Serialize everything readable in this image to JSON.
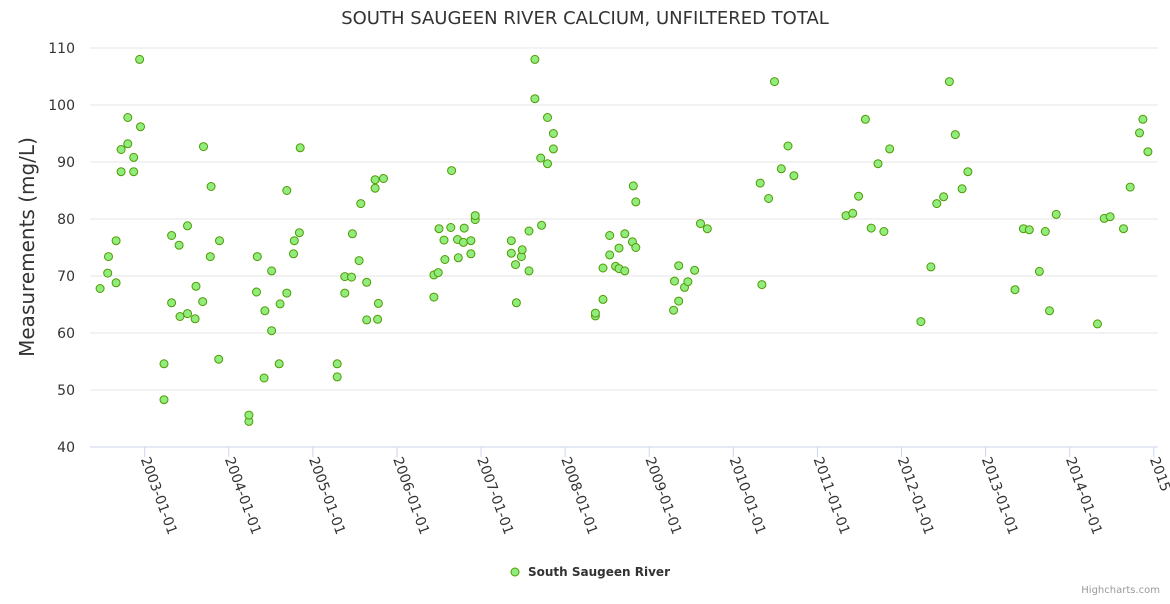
{
  "chart_data": {
    "type": "scatter",
    "title": "SOUTH SAUGEEN RIVER CALCIUM, UNFILTERED TOTAL",
    "xlabel": "",
    "ylabel": "Measurements (mg/L)",
    "ylim": [
      40,
      110
    ],
    "yticks": [
      40,
      50,
      60,
      70,
      80,
      90,
      100,
      110
    ],
    "xlim": [
      2002.35,
      2015.05
    ],
    "xticks": [
      {
        "value": 2003.0,
        "label": "2003-01-01"
      },
      {
        "value": 2004.0,
        "label": "2004-01-01"
      },
      {
        "value": 2005.0,
        "label": "2005-01-01"
      },
      {
        "value": 2006.0,
        "label": "2006-01-01"
      },
      {
        "value": 2007.0,
        "label": "2007-01-01"
      },
      {
        "value": 2008.0,
        "label": "2008-01-01"
      },
      {
        "value": 2009.0,
        "label": "2009-01-01"
      },
      {
        "value": 2010.0,
        "label": "2010-01-01"
      },
      {
        "value": 2011.0,
        "label": "2011-01-01"
      },
      {
        "value": 2012.0,
        "label": "2012-01-01"
      },
      {
        "value": 2013.0,
        "label": "2013-01-01"
      },
      {
        "value": 2014.0,
        "label": "2014-01-01"
      },
      {
        "value": 2015.0,
        "label": "2015"
      }
    ],
    "grid": true,
    "legend_position": "bottom-center",
    "color": "#90ed7d",
    "stroke_color": "#4f9a00",
    "series": [
      {
        "name": "South Saugeen River",
        "points": [
          [
            2002.47,
            67.8
          ],
          [
            2002.56,
            70.5
          ],
          [
            2002.57,
            73.4
          ],
          [
            2002.66,
            68.8
          ],
          [
            2002.66,
            76.2
          ],
          [
            2002.72,
            88.3
          ],
          [
            2002.72,
            92.2
          ],
          [
            2002.8,
            93.2
          ],
          [
            2002.8,
            97.8
          ],
          [
            2002.87,
            88.3
          ],
          [
            2002.87,
            90.8
          ],
          [
            2002.94,
            108.0
          ],
          [
            2002.95,
            96.2
          ],
          [
            2003.23,
            48.3
          ],
          [
            2003.23,
            54.6
          ],
          [
            2003.32,
            77.1
          ],
          [
            2003.32,
            65.3
          ],
          [
            2003.41,
            75.4
          ],
          [
            2003.42,
            62.9
          ],
          [
            2003.51,
            63.4
          ],
          [
            2003.51,
            78.8
          ],
          [
            2003.6,
            62.5
          ],
          [
            2003.61,
            68.2
          ],
          [
            2003.69,
            65.5
          ],
          [
            2003.7,
            92.7
          ],
          [
            2003.78,
            73.4
          ],
          [
            2003.79,
            85.7
          ],
          [
            2003.88,
            55.4
          ],
          [
            2003.89,
            76.2
          ],
          [
            2004.24,
            44.5
          ],
          [
            2004.24,
            45.6
          ],
          [
            2004.33,
            67.2
          ],
          [
            2004.34,
            73.4
          ],
          [
            2004.42,
            52.1
          ],
          [
            2004.43,
            63.9
          ],
          [
            2004.51,
            60.4
          ],
          [
            2004.51,
            70.9
          ],
          [
            2004.6,
            54.6
          ],
          [
            2004.61,
            65.1
          ],
          [
            2004.69,
            85.0
          ],
          [
            2004.69,
            67.0
          ],
          [
            2004.77,
            73.9
          ],
          [
            2004.78,
            76.2
          ],
          [
            2004.84,
            77.6
          ],
          [
            2004.85,
            92.5
          ],
          [
            2005.29,
            52.3
          ],
          [
            2005.29,
            54.6
          ],
          [
            2005.38,
            67.0
          ],
          [
            2005.38,
            69.9
          ],
          [
            2005.46,
            69.8
          ],
          [
            2005.47,
            77.4
          ],
          [
            2005.55,
            72.7
          ],
          [
            2005.57,
            82.7
          ],
          [
            2005.64,
            62.3
          ],
          [
            2005.64,
            68.9
          ],
          [
            2005.74,
            85.4
          ],
          [
            2005.74,
            86.9
          ],
          [
            2005.77,
            62.4
          ],
          [
            2005.78,
            65.2
          ],
          [
            2005.84,
            87.1
          ],
          [
            2006.44,
            66.3
          ],
          [
            2006.44,
            70.2
          ],
          [
            2006.49,
            70.6
          ],
          [
            2006.5,
            78.3
          ],
          [
            2006.56,
            76.3
          ],
          [
            2006.57,
            72.9
          ],
          [
            2006.64,
            78.5
          ],
          [
            2006.65,
            88.5
          ],
          [
            2006.72,
            76.4
          ],
          [
            2006.73,
            73.2
          ],
          [
            2006.79,
            75.9
          ],
          [
            2006.8,
            78.4
          ],
          [
            2006.88,
            73.9
          ],
          [
            2006.88,
            76.2
          ],
          [
            2006.93,
            79.9
          ],
          [
            2006.93,
            80.6
          ],
          [
            2007.36,
            76.2
          ],
          [
            2007.36,
            74.0
          ],
          [
            2007.41,
            72.0
          ],
          [
            2007.42,
            65.3
          ],
          [
            2007.48,
            73.4
          ],
          [
            2007.49,
            74.6
          ],
          [
            2007.57,
            70.9
          ],
          [
            2007.57,
            77.9
          ],
          [
            2007.64,
            108.0
          ],
          [
            2007.64,
            101.1
          ],
          [
            2007.71,
            90.7
          ],
          [
            2007.72,
            78.9
          ],
          [
            2007.79,
            97.8
          ],
          [
            2007.79,
            89.7
          ],
          [
            2007.86,
            92.3
          ],
          [
            2007.86,
            95.0
          ],
          [
            2008.36,
            63.0
          ],
          [
            2008.36,
            63.5
          ],
          [
            2008.45,
            71.4
          ],
          [
            2008.45,
            65.9
          ],
          [
            2008.53,
            77.1
          ],
          [
            2008.53,
            73.7
          ],
          [
            2008.6,
            71.7
          ],
          [
            2008.64,
            74.9
          ],
          [
            2008.64,
            71.3
          ],
          [
            2008.71,
            77.4
          ],
          [
            2008.71,
            70.9
          ],
          [
            2008.8,
            76.0
          ],
          [
            2008.81,
            85.8
          ],
          [
            2008.84,
            75.0
          ],
          [
            2008.84,
            83.0
          ],
          [
            2009.29,
            64.0
          ],
          [
            2009.3,
            69.1
          ],
          [
            2009.35,
            71.8
          ],
          [
            2009.35,
            65.6
          ],
          [
            2009.42,
            68.0
          ],
          [
            2009.46,
            69.0
          ],
          [
            2009.54,
            71.0
          ],
          [
            2009.61,
            79.2
          ],
          [
            2009.69,
            78.3
          ],
          [
            2010.32,
            86.3
          ],
          [
            2010.34,
            68.5
          ],
          [
            2010.42,
            83.6
          ],
          [
            2010.49,
            104.1
          ],
          [
            2010.57,
            88.8
          ],
          [
            2010.65,
            92.8
          ],
          [
            2010.72,
            87.6
          ],
          [
            2011.34,
            80.6
          ],
          [
            2011.42,
            81.0
          ],
          [
            2011.49,
            84.0
          ],
          [
            2011.57,
            97.5
          ],
          [
            2011.64,
            78.4
          ],
          [
            2011.72,
            89.7
          ],
          [
            2011.79,
            77.8
          ],
          [
            2011.86,
            92.3
          ],
          [
            2012.23,
            62.0
          ],
          [
            2012.35,
            71.6
          ],
          [
            2012.42,
            82.7
          ],
          [
            2012.5,
            83.9
          ],
          [
            2012.57,
            104.1
          ],
          [
            2012.64,
            94.8
          ],
          [
            2012.72,
            85.3
          ],
          [
            2012.79,
            88.3
          ],
          [
            2013.35,
            67.6
          ],
          [
            2013.45,
            78.3
          ],
          [
            2013.52,
            78.1
          ],
          [
            2013.64,
            70.8
          ],
          [
            2013.71,
            77.8
          ],
          [
            2013.76,
            63.9
          ],
          [
            2013.84,
            80.8
          ],
          [
            2014.33,
            61.6
          ],
          [
            2014.41,
            80.1
          ],
          [
            2014.48,
            80.4
          ],
          [
            2014.64,
            78.3
          ],
          [
            2014.72,
            85.6
          ],
          [
            2014.83,
            95.1
          ],
          [
            2014.87,
            97.5
          ],
          [
            2014.93,
            91.8
          ]
        ]
      }
    ]
  },
  "credits": "Highcharts.com"
}
